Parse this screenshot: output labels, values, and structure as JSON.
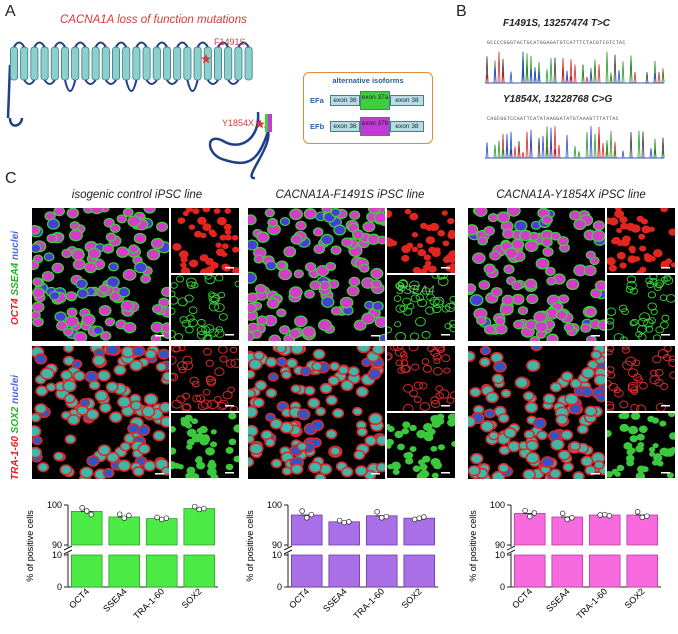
{
  "panel_labels": {
    "a": "A",
    "b": "B",
    "c": "C"
  },
  "panel_a": {
    "title": "CACNA1A loss of function mutations",
    "mutation_1": "F1491S",
    "mutation_2": "Y1854X",
    "isoforms": {
      "title": "alternative isoforms",
      "rows": [
        {
          "label": "EFa",
          "exons": [
            "exon 36",
            "exon 37a",
            "exon 38"
          ],
          "accent": "#3ecf3e"
        },
        {
          "label": "EFb",
          "exons": [
            "exon 36",
            "exon 37b",
            "exon 38"
          ],
          "accent": "#c23bd4"
        }
      ]
    }
  },
  "panel_b": {
    "traces": [
      {
        "title": "F1491S, 13257474 T>C",
        "sequence": "GCCCCGGGTACTGCATGGAGATGTCATTTCTACGTCGTCTAC"
      },
      {
        "title": "Y1854X, 13228768 C>G",
        "sequence": "CAGCGGTCCAATTCATATAAGGATATGTAAAGTTTATTAC"
      }
    ]
  },
  "panel_c": {
    "columns": [
      {
        "title": "isogenic control iPSC line",
        "bar_color": "#4bea45",
        "edge_color": "#2f9e2b"
      },
      {
        "title": "CACNA1A-F1491S iPSC line",
        "bar_color": "#a86fe6",
        "edge_color": "#6b3fa6"
      },
      {
        "title": "CACNA1A-Y1854X iPSC line",
        "bar_color": "#f86bdf",
        "edge_color": "#b83fa0"
      }
    ],
    "row_labels": {
      "row1": {
        "marker_a": "OCT4",
        "marker_b": "SSEA4",
        "marker_c": "nuclei"
      },
      "row2": {
        "marker_a": "TRA-1-60",
        "marker_b": "SOX2",
        "marker_c": "nuclei"
      }
    },
    "inset_text": "SSEA4"
  },
  "chart_data": [
    {
      "type": "bar",
      "categories": [
        "OCT4",
        "SSEA4",
        "TRA-1-60",
        "SOX2"
      ],
      "values": [
        98.4,
        97.0,
        96.6,
        99.1
      ],
      "points": [
        [
          99.3,
          98.5,
          97.6
        ],
        [
          97.7,
          96.7,
          97.4
        ],
        [
          96.9,
          96.4,
          96.7
        ],
        [
          99.6,
          98.9,
          99.1
        ]
      ],
      "ylabel": "% of positive cells",
      "yticks": [
        "100",
        "90",
        "10",
        "0"
      ],
      "ylim": [
        0,
        100
      ],
      "axis_break": [
        10,
        90
      ],
      "color": "#4bea45"
    },
    {
      "type": "bar",
      "categories": [
        "OCT4",
        "SSEA4",
        "TRA-1-60",
        "SOX2"
      ],
      "values": [
        97.5,
        95.8,
        97.3,
        96.7
      ],
      "points": [
        [
          98.5,
          96.8,
          97.6
        ],
        [
          96.1,
          95.6,
          95.8
        ],
        [
          98.3,
          96.8,
          97.1
        ],
        [
          96.4,
          96.7,
          97.0
        ]
      ],
      "ylabel": "% of positive cells",
      "yticks": [
        "100",
        "90",
        "10",
        "0"
      ],
      "ylim": [
        0,
        100
      ],
      "axis_break": [
        10,
        90
      ],
      "color": "#a86fe6"
    },
    {
      "type": "bar",
      "categories": [
        "OCT4",
        "SSEA4",
        "TRA-1-60",
        "SOX2"
      ],
      "values": [
        97.9,
        97.0,
        97.5,
        97.5
      ],
      "points": [
        [
          98.6,
          97.1,
          98.0
        ],
        [
          97.9,
          96.4,
          96.8
        ],
        [
          97.5,
          97.6,
          97.3
        ],
        [
          98.3,
          96.9,
          97.2
        ]
      ],
      "ylabel": "% of positive cells",
      "yticks": [
        "100",
        "90",
        "10",
        "0"
      ],
      "ylim": [
        0,
        100
      ],
      "axis_break": [
        10,
        90
      ],
      "color": "#f86bdf"
    }
  ]
}
